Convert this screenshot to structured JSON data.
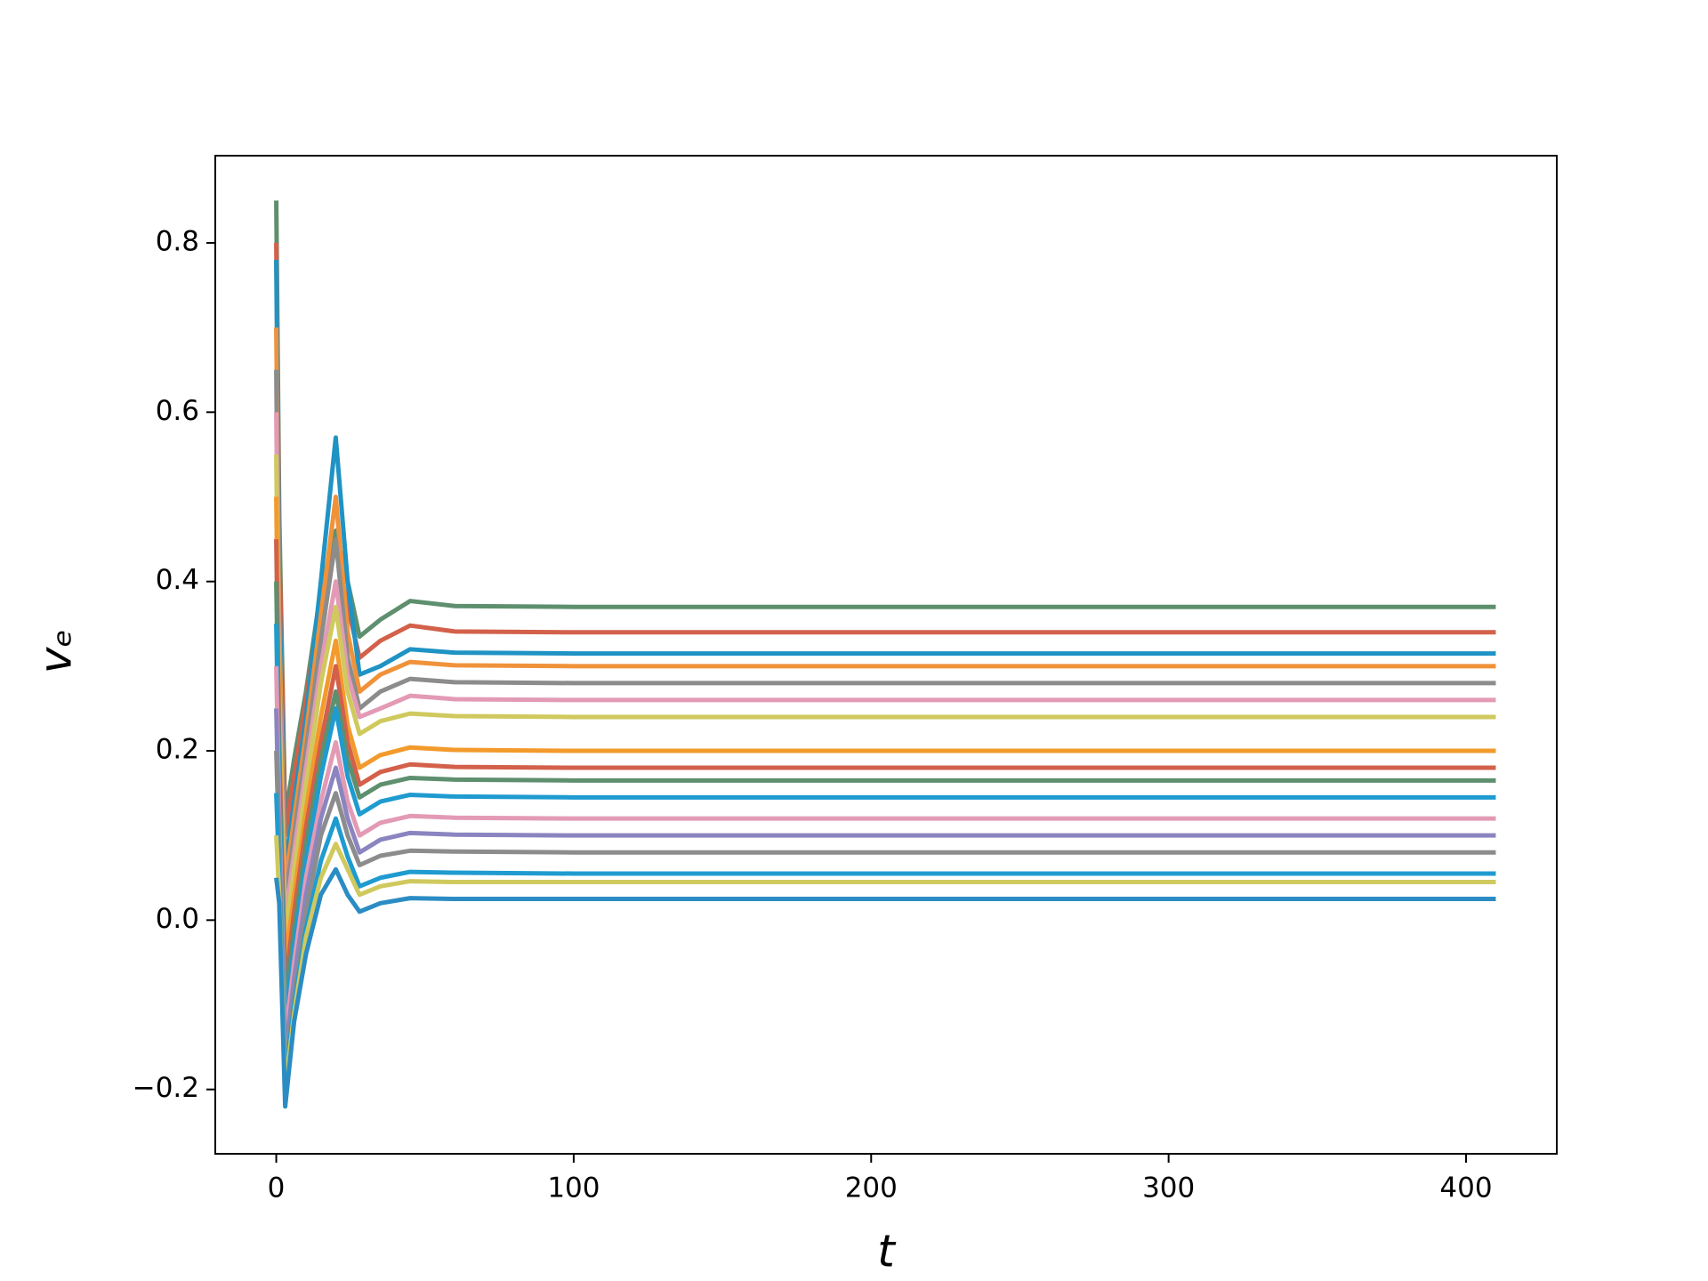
{
  "chart_data": {
    "type": "line",
    "xlabel": "t",
    "ylabel": "vₑ",
    "xlim": [
      -20.5,
      430.5
    ],
    "ylim": [
      -0.276,
      0.903
    ],
    "xticks": [
      0,
      100,
      200,
      300,
      400
    ],
    "yticks": [
      {
        "value": -0.2,
        "label": "−0.2"
      },
      {
        "value": 0,
        "label": "0.0"
      },
      0.2,
      0.4,
      0.6,
      0.8
    ],
    "x": [
      0,
      1,
      3,
      6,
      10,
      15,
      20,
      24,
      28,
      35,
      45,
      60,
      100,
      410
    ],
    "series": [
      {
        "color": "#5e8f6e",
        "values": [
          0.85,
          0.48,
          0.12,
          0.19,
          0.27,
          0.39,
          0.46,
          0.4,
          0.335,
          0.355,
          0.377,
          0.371,
          0.37,
          0.37
        ]
      },
      {
        "color": "#d3604a",
        "values": [
          0.8,
          0.45,
          0.1,
          0.17,
          0.26,
          0.38,
          0.44,
          0.37,
          0.31,
          0.33,
          0.348,
          0.341,
          0.34,
          0.34
        ]
      },
      {
        "color": "#1f93c4",
        "values": [
          0.78,
          0.4,
          0.06,
          0.14,
          0.24,
          0.4,
          0.57,
          0.4,
          0.29,
          0.3,
          0.32,
          0.316,
          0.315,
          0.315
        ]
      },
      {
        "color": "#f0923a",
        "values": [
          0.7,
          0.35,
          0.04,
          0.12,
          0.22,
          0.36,
          0.5,
          0.34,
          0.27,
          0.29,
          0.305,
          0.301,
          0.3,
          0.3
        ]
      },
      {
        "color": "#8c8c8c",
        "values": [
          0.65,
          0.3,
          0.02,
          0.1,
          0.2,
          0.33,
          0.45,
          0.31,
          0.25,
          0.27,
          0.285,
          0.281,
          0.28,
          0.28
        ]
      },
      {
        "color": "#e39ab5",
        "values": [
          0.6,
          0.28,
          0.0,
          0.08,
          0.18,
          0.3,
          0.4,
          0.29,
          0.24,
          0.25,
          0.265,
          0.261,
          0.26,
          0.26
        ]
      },
      {
        "color": "#cfc95e",
        "values": [
          0.55,
          0.25,
          -0.02,
          0.06,
          0.16,
          0.28,
          0.37,
          0.27,
          0.22,
          0.235,
          0.244,
          0.241,
          0.24,
          0.24
        ]
      },
      {
        "color": "#f39a2c",
        "values": [
          0.5,
          0.22,
          -0.05,
          0.03,
          0.13,
          0.24,
          0.33,
          0.23,
          0.18,
          0.195,
          0.204,
          0.201,
          0.2,
          0.2
        ]
      },
      {
        "color": "#d3604a",
        "values": [
          0.45,
          0.2,
          -0.08,
          0.01,
          0.11,
          0.21,
          0.3,
          0.21,
          0.16,
          0.175,
          0.184,
          0.181,
          0.18,
          0.18
        ]
      },
      {
        "color": "#5e8f6e",
        "values": [
          0.4,
          0.18,
          -0.1,
          -0.01,
          0.09,
          0.19,
          0.27,
          0.19,
          0.145,
          0.16,
          0.168,
          0.166,
          0.165,
          0.165
        ]
      },
      {
        "color": "#1f9bd0",
        "values": [
          0.35,
          0.15,
          -0.12,
          -0.03,
          0.07,
          0.17,
          0.25,
          0.17,
          0.125,
          0.14,
          0.148,
          0.146,
          0.145,
          0.145
        ]
      },
      {
        "color": "#e39ab5",
        "values": [
          0.3,
          0.12,
          -0.14,
          -0.05,
          0.05,
          0.14,
          0.21,
          0.14,
          0.1,
          0.115,
          0.123,
          0.121,
          0.12,
          0.12
        ]
      },
      {
        "color": "#8a85c0",
        "values": [
          0.25,
          0.1,
          -0.16,
          -0.07,
          0.03,
          0.12,
          0.18,
          0.12,
          0.08,
          0.095,
          0.103,
          0.101,
          0.1,
          0.1
        ]
      },
      {
        "color": "#8c8c8c",
        "values": [
          0.2,
          0.08,
          -0.18,
          -0.09,
          0.01,
          0.1,
          0.15,
          0.1,
          0.065,
          0.076,
          0.082,
          0.081,
          0.08,
          0.08
        ]
      },
      {
        "color": "#1f9bd0",
        "values": [
          0.15,
          0.05,
          -0.19,
          -0.1,
          -0.01,
          0.07,
          0.12,
          0.075,
          0.04,
          0.05,
          0.057,
          0.056,
          0.055,
          0.055
        ]
      },
      {
        "color": "#cfc95e",
        "values": [
          0.1,
          0.03,
          -0.2,
          -0.11,
          -0.02,
          0.05,
          0.09,
          0.06,
          0.03,
          0.04,
          0.046,
          0.045,
          0.045,
          0.045
        ]
      },
      {
        "color": "#2b8cc4",
        "values": [
          0.05,
          0.02,
          -0.22,
          -0.12,
          -0.04,
          0.03,
          0.06,
          0.03,
          0.01,
          0.02,
          0.026,
          0.025,
          0.025,
          0.025
        ]
      }
    ]
  }
}
